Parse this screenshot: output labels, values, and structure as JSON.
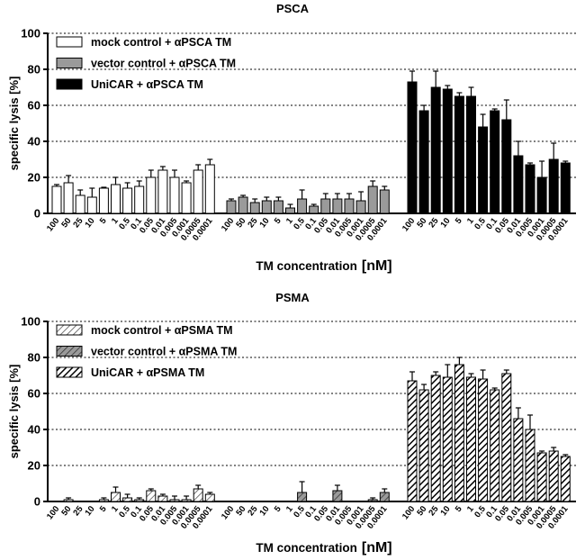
{
  "chart_data": [
    {
      "type": "bar",
      "title": "PSCA",
      "ylabel": "specific lysis [%]",
      "xlabel": "TM concentration",
      "xlabel_unit": "[nM]",
      "ylim": [
        0,
        100
      ],
      "yticks": [
        0,
        20,
        40,
        60,
        80,
        100
      ],
      "grid": "dotted horizontal",
      "categories": [
        "100",
        "50",
        "25",
        "10",
        "5",
        "1",
        "0.5",
        "0.1",
        "0.05",
        "0.01",
        "0.005",
        "0.001",
        "0.0005",
        "0.0001"
      ],
      "series": [
        {
          "name": "mock control + αPSCA TM",
          "fill": "white",
          "values": [
            15,
            17,
            10,
            9,
            14,
            16,
            14,
            15,
            20,
            24,
            20,
            17,
            24,
            27
          ],
          "errors": [
            1,
            4,
            3,
            5,
            0.5,
            4,
            3,
            3,
            4,
            2,
            4,
            1,
            3,
            3
          ]
        },
        {
          "name": "vector control + αPSCA TM",
          "fill": "gray",
          "values": [
            7,
            9,
            6,
            7,
            7,
            3,
            8,
            4,
            8,
            8,
            8,
            7,
            15,
            13
          ],
          "errors": [
            1,
            1,
            2,
            2,
            2,
            2,
            5,
            1,
            3,
            3,
            3,
            5,
            3,
            2
          ]
        },
        {
          "name": "UniCAR + αPSCA TM",
          "fill": "black",
          "values": [
            73,
            57,
            70,
            69,
            65,
            65,
            48,
            57,
            52,
            32,
            27,
            20,
            30,
            28
          ],
          "errors": [
            6,
            3,
            9,
            2,
            2,
            5,
            7,
            1,
            11,
            8,
            1,
            9,
            9,
            1
          ]
        }
      ]
    },
    {
      "type": "bar",
      "title": "PSMA",
      "ylabel": "specific lysis [%]",
      "xlabel": "TM concentration",
      "xlabel_unit": "[nM]",
      "ylim": [
        0,
        100
      ],
      "yticks": [
        0,
        20,
        40,
        60,
        80,
        100
      ],
      "grid": "dotted horizontal",
      "categories": [
        "100",
        "50",
        "25",
        "10",
        "5",
        "1",
        "0.5",
        "0.1",
        "0.05",
        "0.01",
        "0.005",
        "0.001",
        "0.0005",
        "0.0001"
      ],
      "series": [
        {
          "name": "mock control + αPSMA TM",
          "fill": "light-hatch",
          "values": [
            0,
            1,
            0,
            0,
            1,
            5,
            2,
            1,
            6,
            3,
            1,
            1,
            7,
            4
          ],
          "errors": [
            0,
            1,
            0,
            0,
            1,
            3,
            2,
            1,
            1,
            1,
            2,
            2,
            2,
            1
          ]
        },
        {
          "name": "vector control + αPSMA TM",
          "fill": "gray-hatch",
          "values": [
            0,
            0,
            0,
            0,
            0,
            0,
            5,
            0,
            0,
            6,
            0,
            0,
            1,
            5
          ],
          "errors": [
            0,
            0,
            0,
            0,
            0,
            0,
            6,
            0,
            0,
            3,
            0,
            0,
            1,
            2
          ]
        },
        {
          "name": "UniCAR + αPSMA TM",
          "fill": "dark-hatch",
          "values": [
            67,
            62,
            70,
            69,
            76,
            69,
            68,
            62,
            71,
            46,
            40,
            27,
            28,
            25
          ],
          "errors": [
            5,
            3,
            2,
            7,
            4,
            2,
            5,
            1,
            2,
            6,
            8,
            1,
            2,
            1
          ]
        }
      ]
    }
  ]
}
